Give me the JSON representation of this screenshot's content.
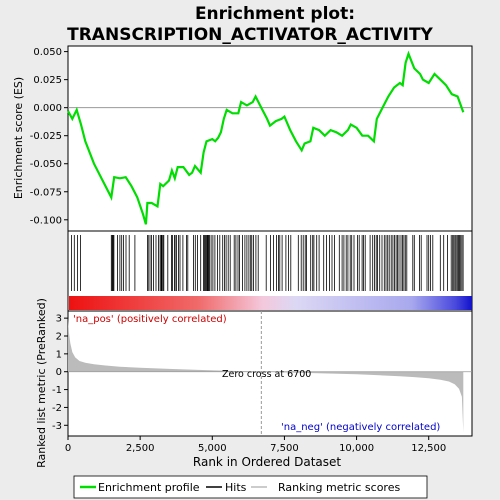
{
  "title_line1": "Enrichment plot:",
  "title_line2": "TRANSCRIPTION_ACTIVATOR_ACTIVITY",
  "es_ylabel": "Enrichment score (ES)",
  "rank_ylabel": "Ranked list metric (PreRanked)",
  "xlabel": "Rank in Ordered Dataset",
  "pos_label": "'na_pos' (positively correlated)",
  "neg_label": "'na_neg' (negatively correlated)",
  "zero_cross_label": "Zero cross at 6700",
  "legend": {
    "enrichment_profile": "Enrichment profile",
    "hits": "Hits",
    "ranking_metric": "Ranking metric scores"
  },
  "colors": {
    "profile": "#00dd00",
    "hits": "#000000",
    "metric_fill": "#bbbbbb",
    "pos_label": "#cc0000",
    "neg_label": "#0000cc",
    "background": "#ececec",
    "panel": "#ffffff"
  },
  "chart_data": [
    {
      "type": "line",
      "name": "enrichment_profile",
      "xlim": [
        0,
        14000
      ],
      "ylim": [
        -0.11,
        0.055
      ],
      "yticks": [
        0.05,
        0.025,
        0.0,
        -0.025,
        -0.05,
        -0.075,
        -0.1
      ],
      "ytick_labels": [
        "0.050",
        "0.025",
        "0.000",
        "-0.025",
        "-0.050",
        "-0.075",
        "-0.100"
      ],
      "x": [
        0,
        150,
        300,
        450,
        600,
        900,
        1200,
        1500,
        1600,
        1800,
        2000,
        2200,
        2400,
        2600,
        2700,
        2750,
        2900,
        3100,
        3200,
        3300,
        3500,
        3600,
        3700,
        3800,
        4000,
        4200,
        4300,
        4400,
        4600,
        4700,
        4800,
        5000,
        5100,
        5200,
        5300,
        5400,
        5500,
        5700,
        5900,
        6000,
        6200,
        6400,
        6500,
        6700,
        6900,
        7000,
        7200,
        7400,
        7500,
        7700,
        7900,
        8100,
        8200,
        8400,
        8500,
        8700,
        8900,
        9100,
        9300,
        9500,
        9700,
        9800,
        10000,
        10200,
        10400,
        10600,
        10700,
        10800,
        10900,
        11000,
        11100,
        11300,
        11500,
        11600,
        11700,
        11800,
        12000,
        12200,
        12300,
        12500,
        12700,
        12900,
        13100,
        13300,
        13500,
        13700
      ],
      "y": [
        -0.003,
        -0.01,
        -0.002,
        -0.015,
        -0.03,
        -0.05,
        -0.065,
        -0.08,
        -0.062,
        -0.063,
        -0.062,
        -0.07,
        -0.08,
        -0.095,
        -0.104,
        -0.085,
        -0.085,
        -0.088,
        -0.068,
        -0.07,
        -0.065,
        -0.056,
        -0.063,
        -0.053,
        -0.053,
        -0.06,
        -0.058,
        -0.052,
        -0.058,
        -0.04,
        -0.03,
        -0.028,
        -0.03,
        -0.027,
        -0.022,
        -0.01,
        -0.002,
        -0.005,
        -0.005,
        0.005,
        0.002,
        0.005,
        0.01,
        0.0,
        -0.01,
        -0.016,
        -0.012,
        -0.01,
        -0.008,
        -0.02,
        -0.03,
        -0.038,
        -0.032,
        -0.03,
        -0.018,
        -0.02,
        -0.025,
        -0.02,
        -0.022,
        -0.025,
        -0.02,
        -0.015,
        -0.018,
        -0.025,
        -0.025,
        -0.03,
        -0.01,
        -0.005,
        0.0,
        0.005,
        0.01,
        0.018,
        0.022,
        0.02,
        0.04,
        0.048,
        0.035,
        0.03,
        0.025,
        0.022,
        0.03,
        0.025,
        0.02,
        0.012,
        0.01,
        -0.004
      ]
    },
    {
      "type": "area",
      "name": "ranking_metric",
      "xlim": [
        0,
        14000
      ],
      "ylim": [
        -3.6,
        3.4
      ],
      "yticks": [
        3,
        2,
        1,
        0,
        -1,
        -2,
        -3
      ],
      "xticks": [
        0,
        2500,
        5000,
        7500,
        10000,
        12500
      ],
      "xtick_labels": [
        "0",
        "2,500",
        "5,000",
        "7,500",
        "10,000",
        "12,500"
      ],
      "zero_cross": 6700,
      "x": [
        0,
        30,
        80,
        150,
        250,
        400,
        600,
        900,
        1300,
        1800,
        2500,
        3500,
        4500,
        5500,
        6700,
        8000,
        9000,
        10000,
        10800,
        11500,
        12000,
        12500,
        12900,
        13200,
        13400,
        13550,
        13650,
        13700
      ],
      "y": [
        3.0,
        2.2,
        1.6,
        1.1,
        0.8,
        0.6,
        0.5,
        0.42,
        0.35,
        0.28,
        0.22,
        0.16,
        0.1,
        0.05,
        0.0,
        -0.06,
        -0.1,
        -0.14,
        -0.2,
        -0.25,
        -0.3,
        -0.37,
        -0.45,
        -0.55,
        -0.7,
        -0.95,
        -1.4,
        -3.4
      ]
    },
    {
      "type": "scatter",
      "name": "hits",
      "x": [
        120,
        220,
        330,
        430,
        1500,
        1530,
        1560,
        1590,
        1720,
        1800,
        1860,
        1920,
        2010,
        2120,
        2320,
        2760,
        2780,
        2840,
        2890,
        2960,
        3050,
        3140,
        3190,
        3230,
        3250,
        3290,
        3320,
        3460,
        3590,
        3620,
        3690,
        3710,
        3760,
        3830,
        3880,
        3980,
        4110,
        4150,
        4350,
        4410,
        4490,
        4600,
        4700,
        4730,
        4770,
        4800,
        4830,
        4850,
        4870,
        4900,
        4960,
        5020,
        5090,
        5180,
        5260,
        5360,
        5420,
        5480,
        5550,
        5620,
        5760,
        5820,
        5890,
        5940,
        6050,
        6130,
        6200,
        6270,
        6330,
        6370,
        6430,
        6510,
        6590,
        6870,
        7020,
        7120,
        7230,
        7290,
        7340,
        7420,
        7550,
        7640,
        7720,
        7980,
        8080,
        8150,
        8220,
        8260,
        8410,
        8480,
        8520,
        8620,
        8700,
        8860,
        8960,
        9060,
        9150,
        9230,
        9400,
        9500,
        9560,
        9640,
        9700,
        9780,
        9830,
        9910,
        10030,
        10090,
        10190,
        10240,
        10300,
        10470,
        10560,
        10620,
        10680,
        10730,
        10800,
        10880,
        10960,
        11020,
        11080,
        11130,
        11200,
        11260,
        11310,
        11370,
        11420,
        11470,
        11540,
        11590,
        11640,
        11690,
        11740,
        11950,
        12000,
        12180,
        12240,
        12440,
        12500,
        12560,
        12640,
        12900,
        13020,
        13150,
        13280,
        13330,
        13370,
        13410,
        13450,
        13490,
        13530,
        13570,
        13610,
        13650,
        13690
      ]
    }
  ]
}
